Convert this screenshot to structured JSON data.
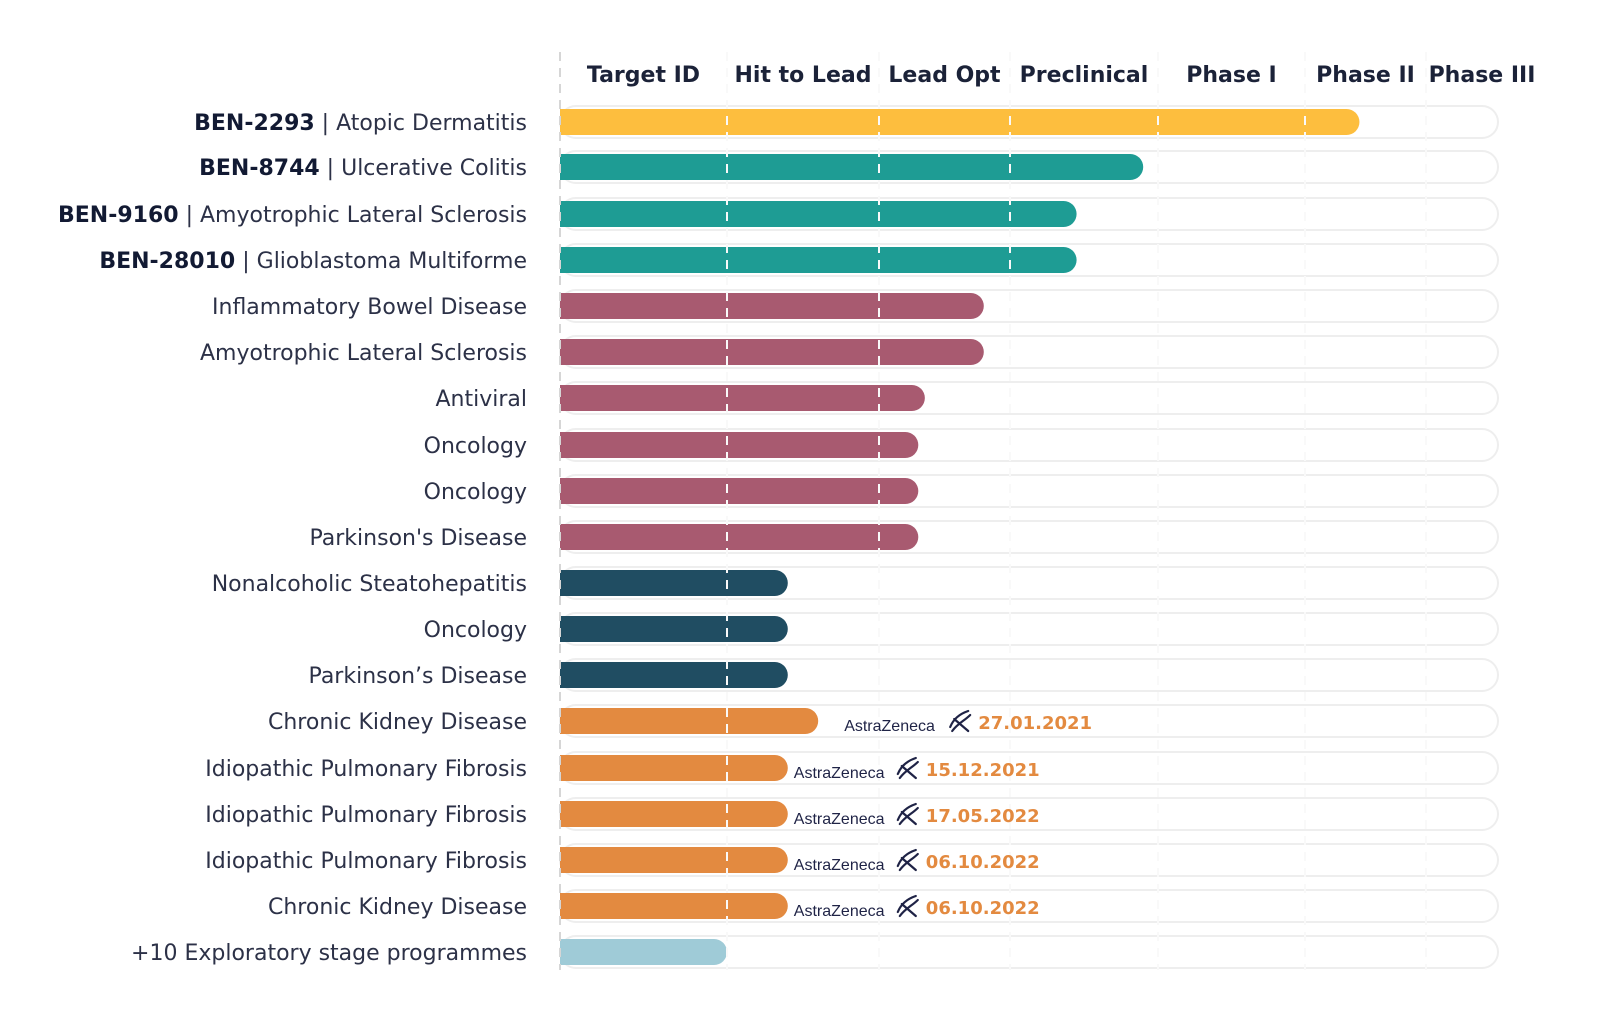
{
  "chart_data": {
    "type": "bar",
    "orientation": "horizontal",
    "grid": "vertical dashed lines at stage boundaries",
    "stages": [
      "Target ID",
      "Hit to Lead",
      "Lead Opt",
      "Preclinical",
      "Phase I",
      "Phase II",
      "Phase III"
    ],
    "value_unit": "stages completed (0–7)",
    "xlim": [
      0,
      7
    ],
    "colors": {
      "yellow": "#FDBE3E",
      "teal": "#1E9C94",
      "mauve": "#A85A70",
      "navy": "#204D62",
      "orange": "#E38A40",
      "lightblue": "#9FCBD7",
      "track": "#EEEEEE",
      "grid": "#D3D3D3"
    },
    "rows": [
      {
        "code": "BEN-2293",
        "separator": " | ",
        "indication": "Atopic Dermatitis",
        "value": 5.45,
        "color": "#FDBE3E"
      },
      {
        "code": "BEN-8744",
        "separator": " |  ",
        "indication": "Ulcerative Colitis",
        "value": 3.9,
        "color": "#1E9C94"
      },
      {
        "code": "BEN-9160",
        "separator": " | ",
        "indication": "Amyotrophic Lateral Sclerosis",
        "value": 3.45,
        "color": "#1E9C94"
      },
      {
        "code": "BEN-28010",
        "separator": " | ",
        "indication": "Glioblastoma Multiforme",
        "value": 3.45,
        "color": "#1E9C94"
      },
      {
        "code": "",
        "separator": "",
        "indication": "Inflammatory Bowel Disease",
        "value": 2.8,
        "color": "#A85A70"
      },
      {
        "code": "",
        "separator": "",
        "indication": "Amyotrophic Lateral Sclerosis",
        "value": 2.8,
        "color": "#A85A70"
      },
      {
        "code": "",
        "separator": "",
        "indication": "Antiviral",
        "value": 2.35,
        "color": "#A85A70"
      },
      {
        "code": "",
        "separator": "",
        "indication": "Oncology",
        "value": 2.3,
        "color": "#A85A70"
      },
      {
        "code": "",
        "separator": "",
        "indication": "Oncology",
        "value": 2.3,
        "color": "#A85A70"
      },
      {
        "code": "",
        "separator": "",
        "indication": "Parkinson's Disease",
        "value": 2.3,
        "color": "#A85A70"
      },
      {
        "code": "",
        "separator": "",
        "indication": "Nonalcoholic Steatohepatitis",
        "value": 1.4,
        "color": "#204D62"
      },
      {
        "code": "",
        "separator": "",
        "indication": "Oncology",
        "value": 1.4,
        "color": "#204D62"
      },
      {
        "code": "",
        "separator": "",
        "indication": "Parkinson’s Disease",
        "value": 1.4,
        "color": "#204D62"
      },
      {
        "code": "",
        "separator": "",
        "indication": "Chronic Kidney Disease",
        "value": 1.6,
        "color": "#E38A40",
        "partner": "AstraZeneca",
        "date": "27.01.2021"
      },
      {
        "code": "",
        "separator": "",
        "indication": "Idiopathic Pulmonary Fibrosis",
        "value": 1.4,
        "color": "#E38A40",
        "partner": "AstraZeneca",
        "date": "15.12.2021"
      },
      {
        "code": "",
        "separator": "",
        "indication": "Idiopathic Pulmonary Fibrosis",
        "value": 1.4,
        "color": "#E38A40",
        "partner": "AstraZeneca",
        "date": "17.05.2022"
      },
      {
        "code": "",
        "separator": "",
        "indication": "Idiopathic Pulmonary Fibrosis",
        "value": 1.4,
        "color": "#E38A40",
        "partner": "AstraZeneca",
        "date": "06.10.2022"
      },
      {
        "code": "",
        "separator": "",
        "indication": "Chronic Kidney Disease",
        "value": 1.4,
        "color": "#E38A40",
        "partner": "AstraZeneca",
        "date": "06.10.2022"
      },
      {
        "code": "",
        "separator": "",
        "indication": "+10 Exploratory stage programmes",
        "value": 1.0,
        "color": "#9FCBD7"
      }
    ]
  }
}
